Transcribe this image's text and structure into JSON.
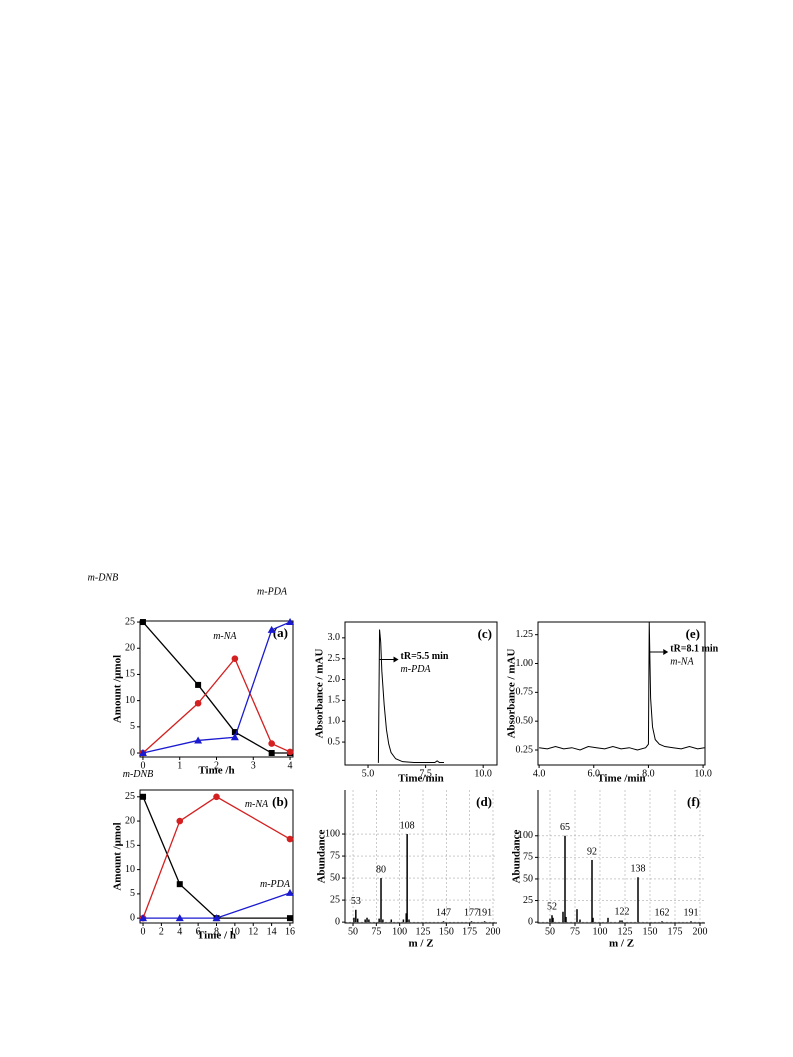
{
  "chart_data": [
    {
      "type": "line",
      "label": "(a)",
      "xlabel": "Time /h",
      "ylabel": "Amount /μmol",
      "xlim": [
        -0.08,
        4.08
      ],
      "ylim": [
        -0.76,
        25.2
      ],
      "xticks": [
        0,
        1,
        2,
        3,
        4
      ],
      "yticks": [
        0,
        5,
        10,
        15,
        20,
        25
      ],
      "x": [
        0,
        1.5,
        2.5,
        3.5,
        4
      ],
      "series": [
        {
          "name": "m-DNB",
          "color": "#000000",
          "marker": "square",
          "values": [
            25,
            13,
            4,
            0,
            0
          ]
        },
        {
          "name": "m-NA",
          "color": "#d42020",
          "marker": "circle",
          "values": [
            0,
            9.5,
            18,
            1.8,
            0.2
          ]
        },
        {
          "name": "m-PDA",
          "color": "#1a1ad0",
          "marker": "triangle",
          "values": [
            0,
            2.4,
            3,
            23.5,
            25
          ]
        }
      ]
    },
    {
      "type": "line",
      "label": "(c)",
      "xlabel": "Time/min",
      "ylabel": "Absorbance / mAU",
      "xlim": [
        4.0,
        10.6
      ],
      "ylim": [
        -0.05,
        3.38
      ],
      "xticks": [
        {
          "value": 5,
          "label": "5.0"
        },
        7.5,
        {
          "value": 10,
          "label": "10.0"
        }
      ],
      "yticks": [
        0.5,
        {
          "value": 1,
          "label": "1.0"
        },
        1.5,
        {
          "value": 2,
          "label": "2.0"
        },
        2.5,
        {
          "value": 3,
          "label": "3.0"
        }
      ],
      "annotation": "tR=5.5 min",
      "x": [
        5.45,
        5.5,
        5.55,
        5.6,
        5.7,
        5.8,
        5.9,
        6.0,
        6.2,
        6.5,
        7.0,
        7.5,
        7.9,
        8.0,
        8.1,
        8.3
      ],
      "series": [
        {
          "name": "m-PDA",
          "color": "#000000",
          "values": [
            0,
            3.2,
            2.9,
            2.2,
            1.4,
            0.8,
            0.45,
            0.25,
            0.1,
            0.03,
            0.01,
            0.01,
            0.01,
            0.05,
            0.01,
            0.01
          ]
        }
      ]
    },
    {
      "type": "line",
      "label": "(e)",
      "xlabel": "Time /min",
      "ylabel": "Absorbance / mAU",
      "xlim": [
        3.96,
        10.07
      ],
      "ylim": [
        0.12,
        1.36
      ],
      "xticks": [
        {
          "value": 4,
          "label": "4.0"
        },
        {
          "value": 6,
          "label": "6.0"
        },
        {
          "value": 8,
          "label": "8.0"
        },
        {
          "value": 10,
          "label": "10.0"
        }
      ],
      "yticks": [
        0.25,
        {
          "value": 0.5,
          "label": "0.50"
        },
        0.75,
        {
          "value": 1,
          "label": "1.00"
        },
        1.25
      ],
      "annotation": "tR=8.1 min",
      "x": [
        4.0,
        4.3,
        4.6,
        4.9,
        5.2,
        5.5,
        5.8,
        6.1,
        6.4,
        6.7,
        7.0,
        7.3,
        7.6,
        7.9,
        8.0,
        8.03,
        8.08,
        8.15,
        8.25,
        8.4,
        8.6,
        8.9,
        9.2,
        9.5,
        9.8,
        10.05
      ],
      "series": [
        {
          "name": "m-NA",
          "color": "#000000",
          "values": [
            0.27,
            0.26,
            0.28,
            0.26,
            0.27,
            0.25,
            0.28,
            0.27,
            0.26,
            0.28,
            0.26,
            0.27,
            0.25,
            0.27,
            0.3,
            1.36,
            0.7,
            0.45,
            0.34,
            0.3,
            0.28,
            0.27,
            0.26,
            0.28,
            0.26,
            0.27
          ]
        }
      ]
    },
    {
      "type": "line",
      "label": "(b)",
      "xlabel": "Time / h",
      "ylabel": "Amount /μmol",
      "xlim": [
        -0.33,
        16.33
      ],
      "ylim": [
        -1,
        26.4
      ],
      "xticks": [
        0,
        2,
        4,
        6,
        8,
        10,
        12,
        14,
        16
      ],
      "yticks": [
        0,
        5,
        10,
        15,
        20,
        25
      ],
      "x": [
        0,
        4,
        8,
        16
      ],
      "series": [
        {
          "name": "m-DNB",
          "color": "#000000",
          "marker": "square",
          "values": [
            25,
            7,
            0,
            0
          ]
        },
        {
          "name": "m-NA",
          "color": "#d42020",
          "marker": "circle",
          "values": [
            0,
            20,
            25,
            16.3
          ]
        },
        {
          "name": "m-PDA",
          "color": "#1a1ad0",
          "marker": "triangle",
          "values": [
            0,
            0,
            0,
            5.2
          ]
        }
      ]
    },
    {
      "type": "bar",
      "label": "(d)",
      "xlabel": "m / Z",
      "ylabel": "Abundance",
      "grid": true,
      "color": "#000000",
      "xlim": [
        41.4,
        204.3
      ],
      "ylim": [
        -1,
        150
      ],
      "xticks": [
        50,
        75,
        100,
        125,
        150,
        175,
        200
      ],
      "yticks": [
        0,
        25,
        50,
        75,
        100
      ],
      "x": [
        51,
        53,
        55,
        63,
        65,
        67,
        78,
        80,
        82,
        91,
        104,
        107,
        108,
        110,
        147,
        177,
        191
      ],
      "values": [
        5,
        14,
        4,
        3,
        5,
        3,
        4,
        50,
        3,
        3,
        3,
        10,
        100,
        3,
        1,
        1,
        1
      ],
      "peak_labels": [
        53,
        80,
        108,
        147,
        177,
        191
      ]
    },
    {
      "type": "bar",
      "label": "(f)",
      "xlabel": "m / Z",
      "ylabel": "Abundance",
      "grid": true,
      "color": "#000000",
      "xlim": [
        38,
        205
      ],
      "ylim": [
        -1,
        153
      ],
      "xticks": [
        50,
        75,
        100,
        125,
        150,
        175,
        200
      ],
      "yticks": [
        0,
        25,
        50,
        75,
        100
      ],
      "x": [
        50,
        52,
        53,
        63,
        65,
        66,
        77,
        80,
        92,
        93,
        108,
        120,
        122,
        138,
        162,
        191
      ],
      "values": [
        4,
        8,
        5,
        12,
        100,
        6,
        15,
        3,
        72,
        5,
        5,
        2,
        2,
        52,
        1,
        1
      ],
      "peak_labels": [
        52,
        65,
        92,
        122,
        138,
        162,
        191
      ]
    }
  ]
}
